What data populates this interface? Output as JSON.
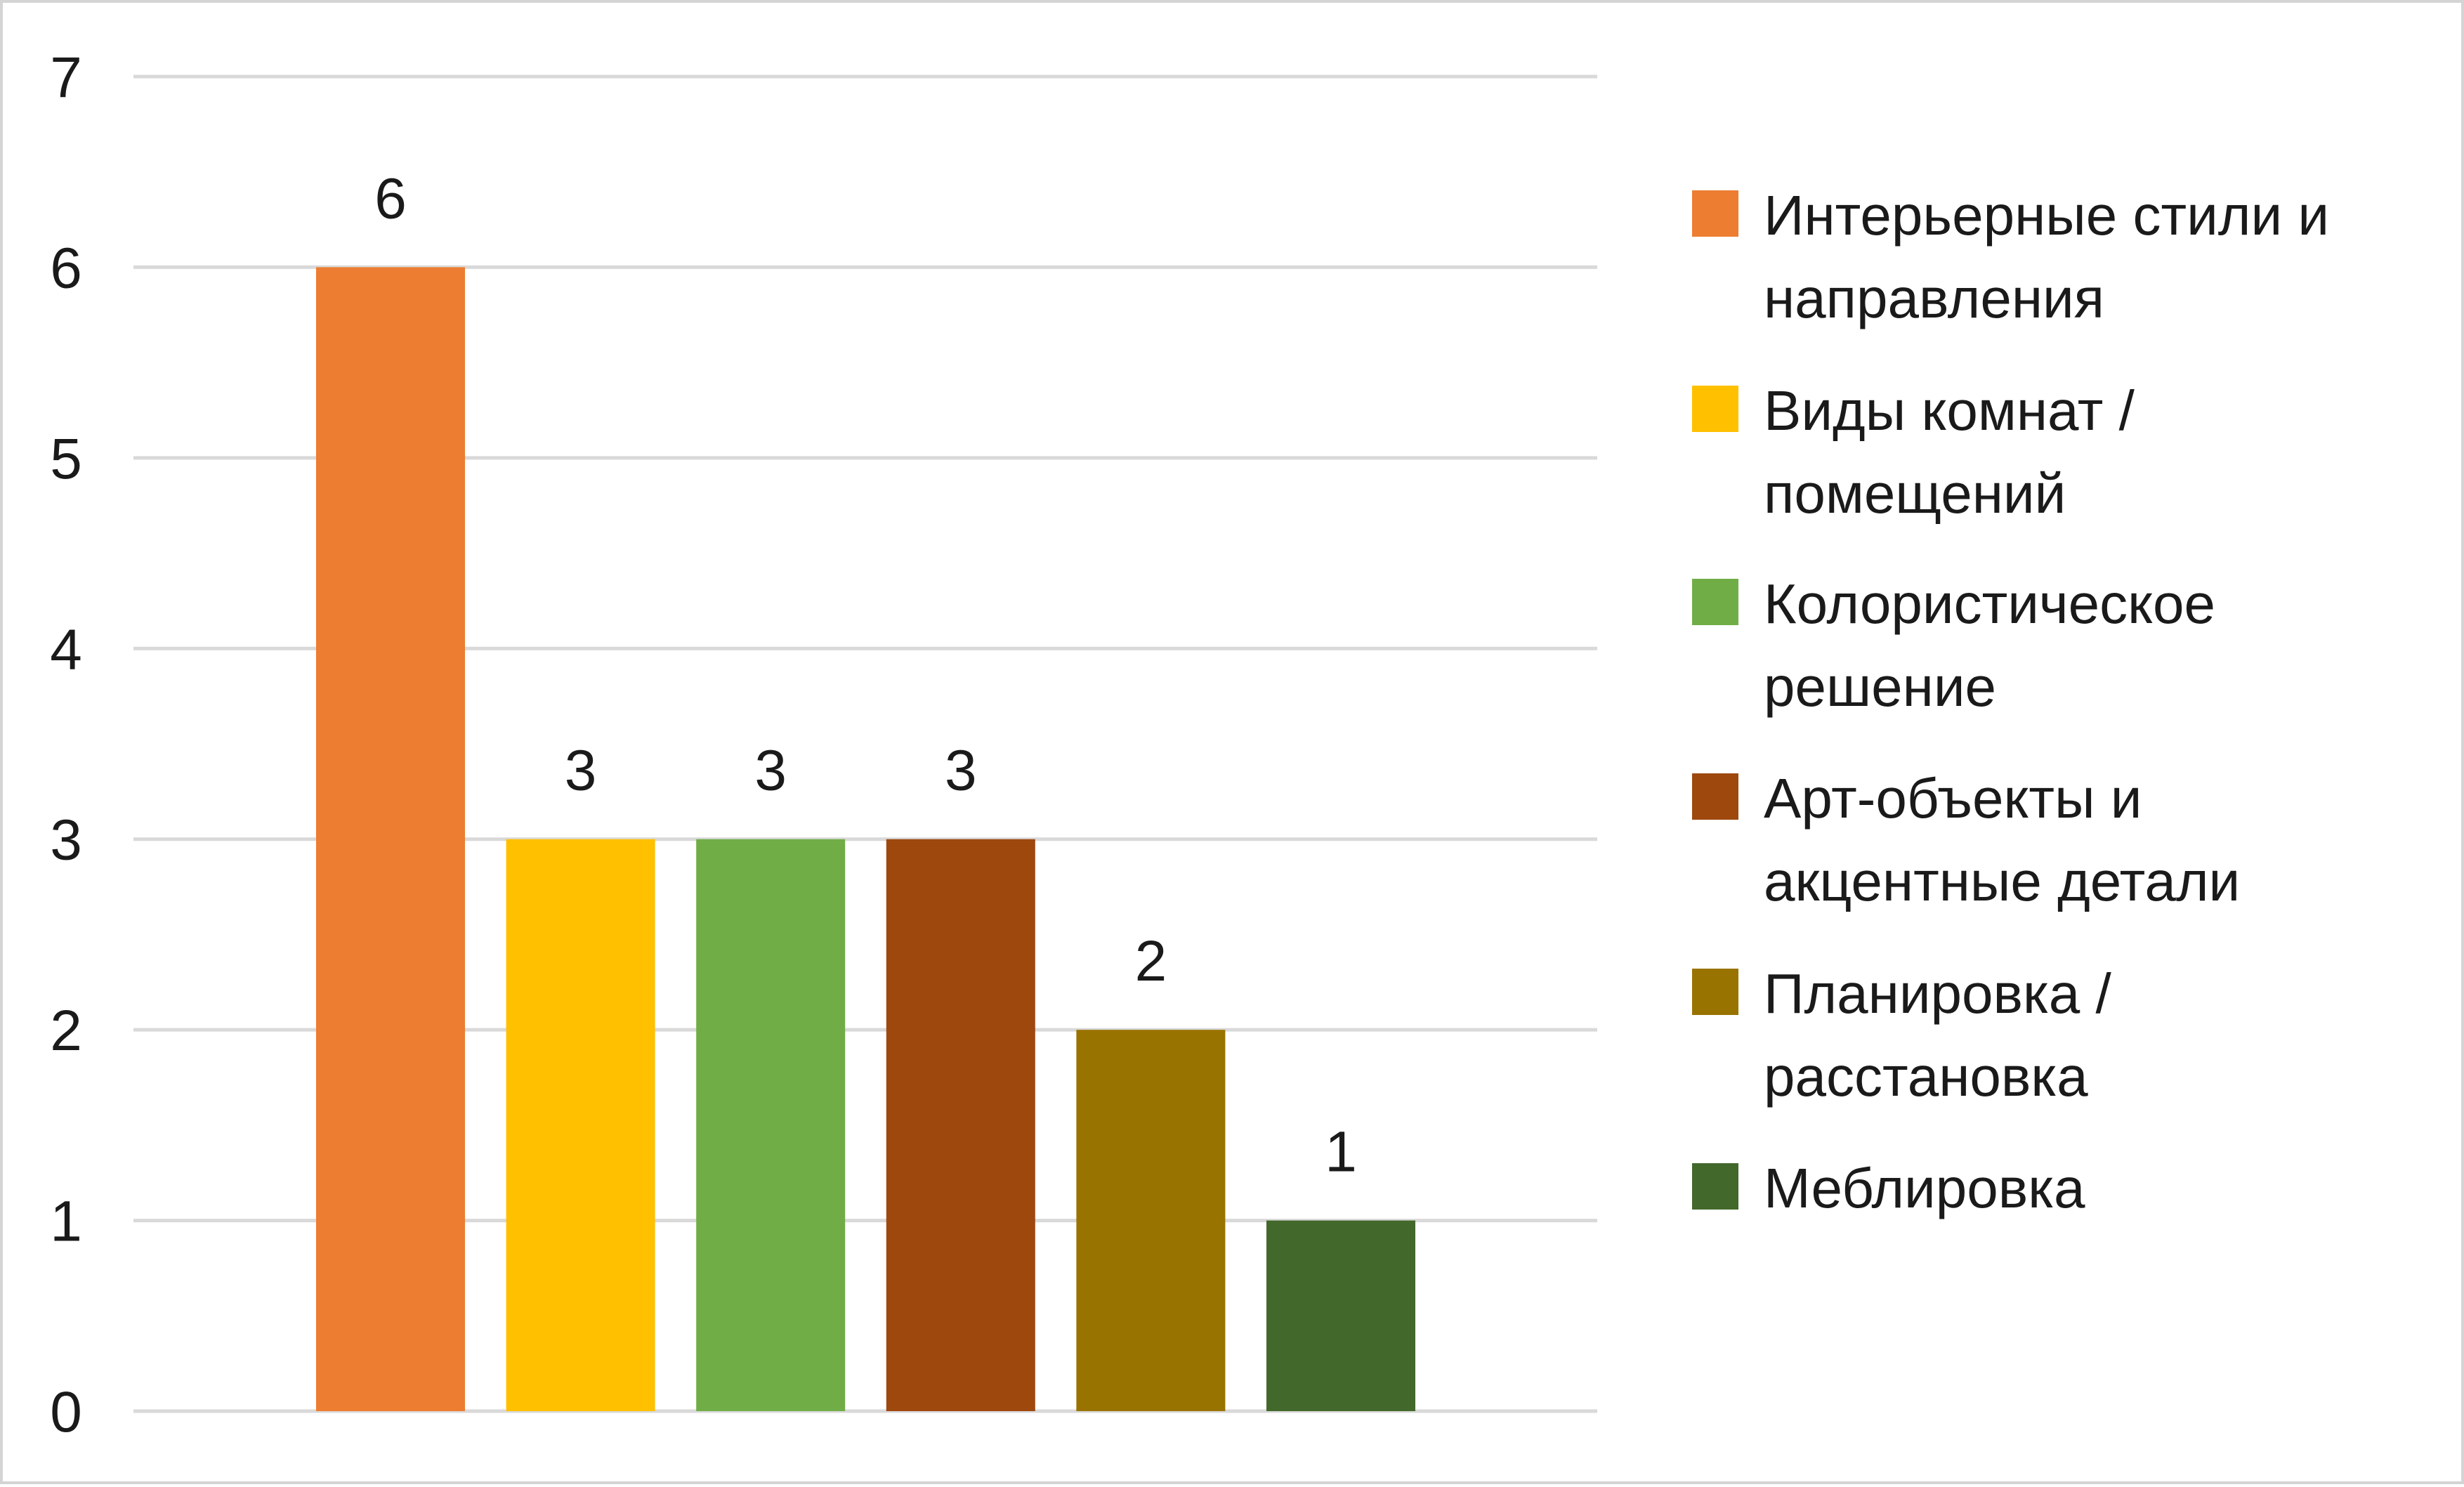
{
  "chart_data": {
    "type": "bar",
    "categories": [
      "Интерьерные стили и направления",
      "Виды комнат / помещений",
      "Колористическое решение",
      "Арт-объекты и акцентные детали",
      "Планировка / расстановка",
      "Меблировка"
    ],
    "values": [
      6,
      3,
      3,
      3,
      2,
      1
    ],
    "colors": [
      "#ED7D31",
      "#FFC000",
      "#70AD47",
      "#9E480E",
      "#997300",
      "#43682B"
    ],
    "ylim": [
      0,
      7
    ],
    "yticks": [
      "0",
      "1",
      "2",
      "3",
      "4",
      "5",
      "6",
      "7"
    ],
    "grid": true,
    "legend_position": "right",
    "legend": [
      {
        "lines": [
          "Интерьерные стили и",
          "направления"
        ],
        "color": "#ED7D31"
      },
      {
        "lines": [
          "Виды комнат /",
          "помещений"
        ],
        "color": "#FFC000"
      },
      {
        "lines": [
          "Колористическое",
          "решение"
        ],
        "color": "#70AD47"
      },
      {
        "lines": [
          "Арт-объекты и",
          "акцентные детали"
        ],
        "color": "#9E480E"
      },
      {
        "lines": [
          "Планировка /",
          "расстановка"
        ],
        "color": "#997300"
      },
      {
        "lines": [
          "Меблировка"
        ],
        "color": "#43682B"
      }
    ]
  }
}
